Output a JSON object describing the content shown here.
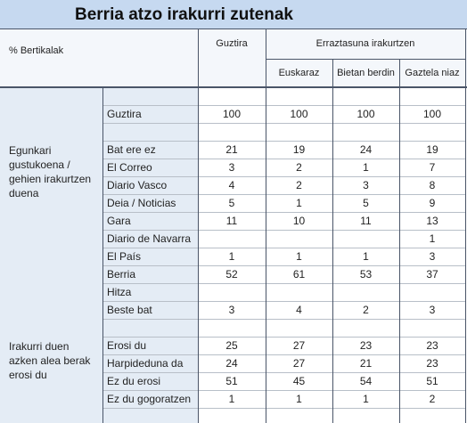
{
  "title": "Berria atzo irakurri zutenak",
  "header": {
    "corner": "% Bertikalak",
    "total": "Guztira",
    "group": "Erraztasuna irakurtzen",
    "columns": [
      "Euskaraz",
      "Bietan berdin",
      "Gaztela niaz"
    ]
  },
  "sections": [
    {
      "rows": [
        {
          "label": "Guztira",
          "values": [
            100,
            100,
            100,
            100
          ]
        }
      ]
    },
    {
      "label": "Egunkari gustukoena / gehien irakurtzen duena",
      "rows": [
        {
          "label": "Bat ere ez",
          "values": [
            21,
            19,
            24,
            19
          ]
        },
        {
          "label": "El Correo",
          "values": [
            3,
            2,
            1,
            7
          ]
        },
        {
          "label": "Diario Vasco",
          "values": [
            4,
            2,
            3,
            8
          ]
        },
        {
          "label": "Deia / Noticias",
          "values": [
            5,
            1,
            5,
            9
          ]
        },
        {
          "label": "Gara",
          "values": [
            11,
            10,
            11,
            13
          ]
        },
        {
          "label": "Diario de Navarra",
          "values": [
            null,
            null,
            null,
            1
          ]
        },
        {
          "label": "El País",
          "values": [
            1,
            1,
            1,
            3
          ]
        },
        {
          "label": "Berria",
          "values": [
            52,
            61,
            53,
            37
          ]
        },
        {
          "label": "Hitza",
          "values": [
            null,
            null,
            null,
            null
          ]
        },
        {
          "label": "Beste bat",
          "values": [
            3,
            4,
            2,
            3
          ]
        }
      ]
    },
    {
      "label": "Irakurri duen azken alea berak erosi du",
      "rows": [
        {
          "label": "Erosi du",
          "values": [
            25,
            27,
            23,
            23
          ]
        },
        {
          "label": "Harpidedunа da",
          "values": [
            24,
            27,
            21,
            23
          ]
        },
        {
          "label": "Ez du erosi",
          "values": [
            51,
            45,
            54,
            51
          ]
        },
        {
          "label": "Ez du gogoratzen",
          "values": [
            1,
            1,
            1,
            2
          ]
        }
      ]
    }
  ]
}
